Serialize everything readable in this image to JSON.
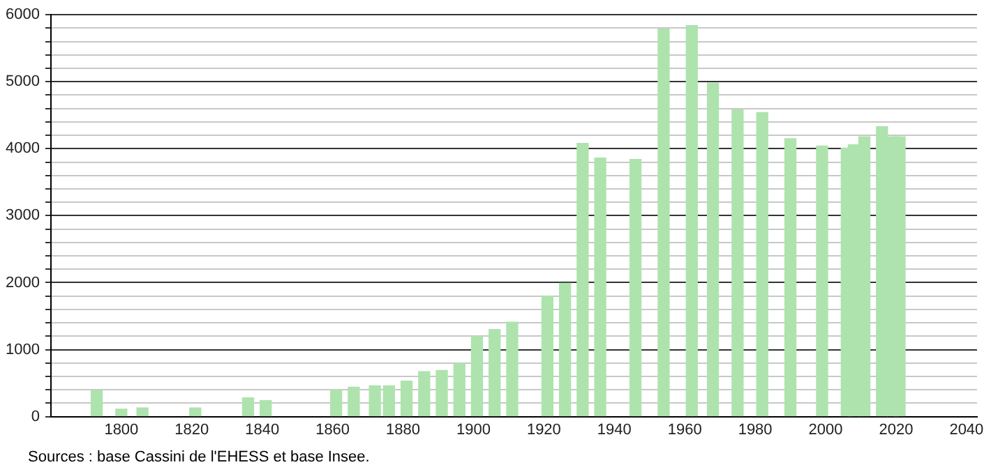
{
  "chart_data": {
    "type": "bar",
    "x": [
      1793,
      1800,
      1806,
      1821,
      1836,
      1841,
      1861,
      1866,
      1872,
      1876,
      1881,
      1886,
      1891,
      1896,
      1901,
      1906,
      1911,
      1921,
      1926,
      1931,
      1936,
      1946,
      1954,
      1962,
      1968,
      1975,
      1982,
      1990,
      1999,
      2006,
      2008,
      2011,
      2016,
      2019,
      2021
    ],
    "values": [
      390,
      110,
      130,
      130,
      280,
      240,
      400,
      440,
      460,
      460,
      530,
      670,
      690,
      790,
      1200,
      1300,
      1410,
      1800,
      1990,
      4080,
      3860,
      3840,
      5790,
      5840,
      4980,
      4580,
      4540,
      4150,
      4040,
      4010,
      4060,
      4180,
      4330,
      4180,
      4180
    ],
    "color": "#aee3ae",
    "xlim": [
      1780,
      2043
    ],
    "xticks": [
      1800,
      1820,
      1840,
      1860,
      1880,
      1900,
      1920,
      1940,
      1960,
      1980,
      2000,
      2020,
      2040
    ],
    "ylim": [
      0,
      6000
    ],
    "yticks": [
      0,
      {
        "value": 200,
        "label": null
      },
      {
        "value": 400,
        "label": null
      },
      {
        "value": 600,
        "label": null
      },
      {
        "value": 800,
        "label": null
      },
      1000,
      {
        "value": 1200,
        "label": null
      },
      {
        "value": 1400,
        "label": null
      },
      {
        "value": 1600,
        "label": null
      },
      {
        "value": 1800,
        "label": null
      },
      2000,
      {
        "value": 2200,
        "label": null
      },
      {
        "value": 2400,
        "label": null
      },
      {
        "value": 2600,
        "label": null
      },
      {
        "value": 2800,
        "label": null
      },
      3000,
      {
        "value": 3200,
        "label": null
      },
      {
        "value": 3400,
        "label": null
      },
      {
        "value": 3600,
        "label": null
      },
      {
        "value": 3800,
        "label": null
      },
      4000,
      {
        "value": 4200,
        "label": null
      },
      {
        "value": 4400,
        "label": null
      },
      {
        "value": 4600,
        "label": null
      },
      {
        "value": 4800,
        "label": null
      },
      5000,
      {
        "value": 5200,
        "label": null
      },
      {
        "value": 5400,
        "label": null
      },
      {
        "value": 5600,
        "label": null
      },
      {
        "value": 5800,
        "label": null
      },
      6000
    ],
    "grid": "y",
    "annotations": [
      "Sources : base Cassini de l'EHESS et base Insee."
    ]
  }
}
